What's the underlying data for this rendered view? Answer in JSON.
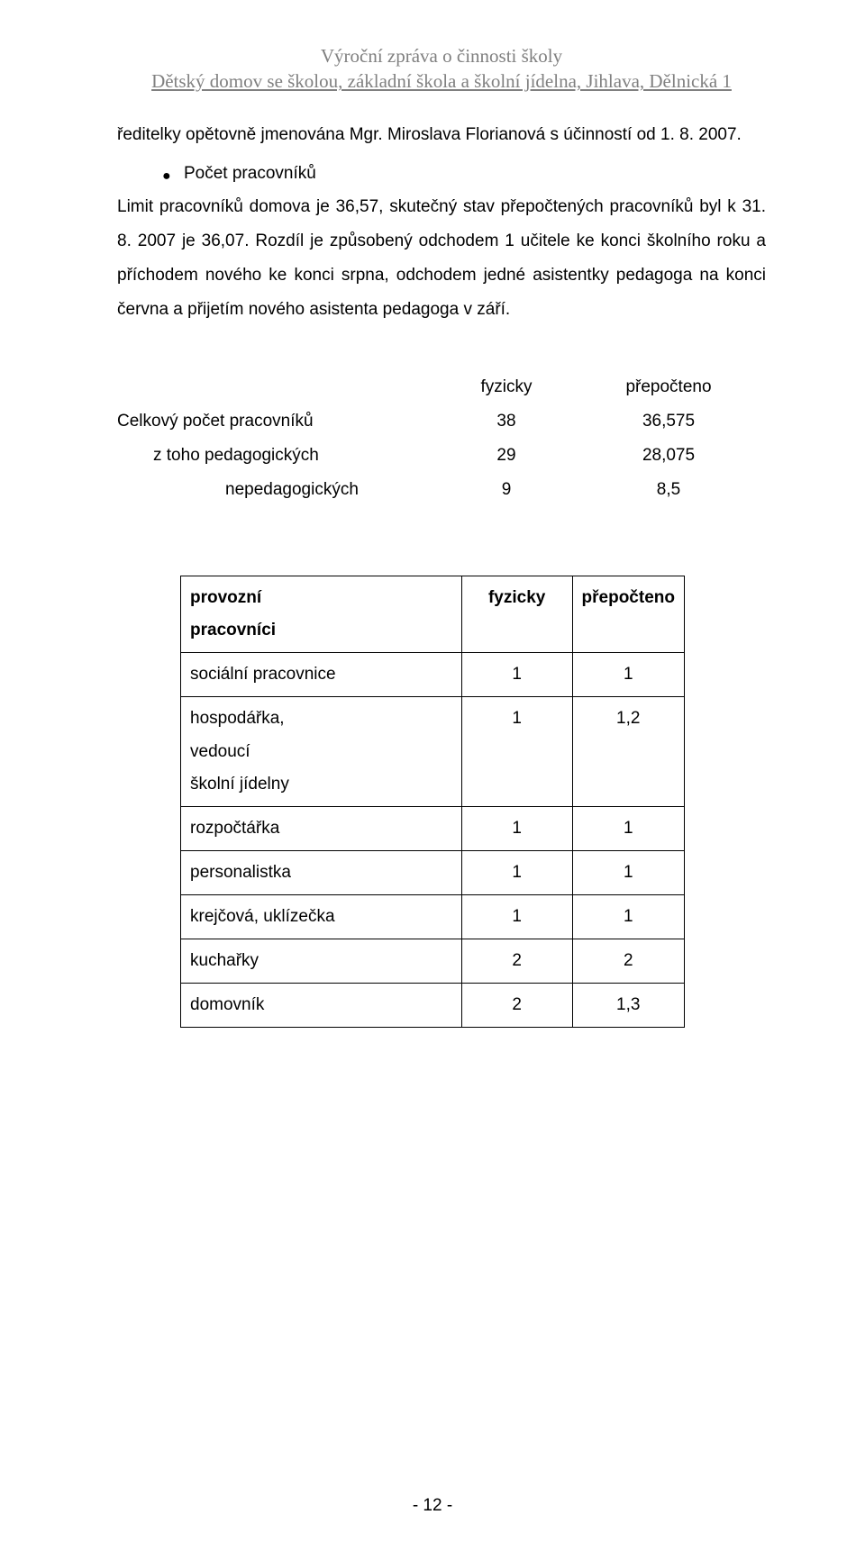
{
  "header": {
    "line1": "Výroční zpráva o činnosti školy",
    "line2": "Dětský domov se školou, základní škola a školní jídelna, Jihlava, Dělnická 1"
  },
  "intro_line": "ředitelky opětovně jmenována Mgr. Miroslava Florianová s účinností od 1. 8. 2007.",
  "bullet_label": "Počet pracovníků",
  "body_para": "Limit pracovníků domova je 36,57, skutečný stav přepočtených pracovníků byl k 31. 8. 2007 je 36,07. Rozdíl je způsobený odchodem 1 učitele ke konci školního roku a příchodem nového ke konci srpna, odchodem jedné asistentky pedagoga na konci června a přijetím nového asistenta pedagoga v září.",
  "count_table": {
    "head_fyz": "fyzicky",
    "head_prep": "přepočteno",
    "rows": [
      {
        "label": "Celkový počet pracovníků",
        "fyz": "38",
        "prep": "36,575",
        "indent": 0
      },
      {
        "label": "z toho pedagogických",
        "fyz": "29",
        "prep": "28,075",
        "indent": 1
      },
      {
        "label": "nepedagogických",
        "fyz": "9",
        "prep": "8,5",
        "indent": 2
      }
    ]
  },
  "detail_table": {
    "head_label": "provozní pracovníci",
    "head_label_line1": "provozní",
    "head_label_line2": "pracovníci",
    "head_fyz": "fyzicky",
    "head_prep": "přepočteno",
    "rows": [
      {
        "label": "sociální pracovnice",
        "fyz": "1",
        "prep": "1"
      },
      {
        "label": "hospodářka, vedoucí školní jídelny",
        "fyz": "1",
        "prep": "1,2",
        "label_line1": "hospodářka,",
        "label_line2": "vedoucí",
        "label_line3": "školní jídelny"
      },
      {
        "label": "rozpočtářka",
        "fyz": "1",
        "prep": "1"
      },
      {
        "label": "personalistka",
        "fyz": "1",
        "prep": "1"
      },
      {
        "label": "krejčová, uklízečka",
        "fyz": "1",
        "prep": "1"
      },
      {
        "label": "kuchařky",
        "fyz": "2",
        "prep": "2"
      },
      {
        "label": "domovník",
        "fyz": "2",
        "prep": "1,3"
      }
    ]
  },
  "page_number": "- 12 -"
}
